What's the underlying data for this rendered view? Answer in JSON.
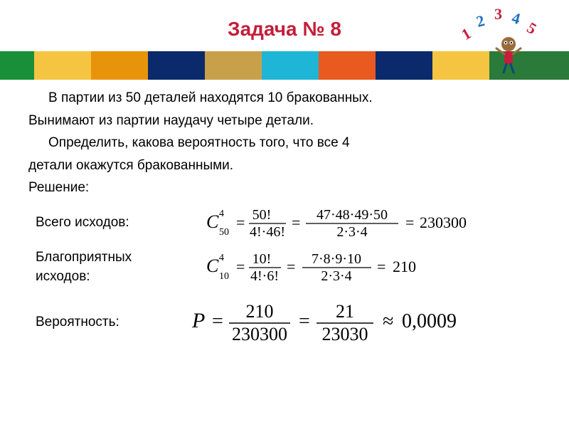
{
  "title": {
    "text": "Задача № 8",
    "color": "#c41e3a",
    "fontsize": 28
  },
  "decoration": {
    "numbers": [
      "1",
      "2",
      "3",
      "4",
      "5"
    ],
    "num_colors": [
      "#c41e3a",
      "#1e6fc4",
      "#c41e3a",
      "#1e6fc4",
      "#c41e3a"
    ]
  },
  "color_bar": {
    "segments": [
      {
        "color": "#1a8f3a",
        "width": 6
      },
      {
        "color": "#f5c542",
        "width": 10
      },
      {
        "color": "#e8940a",
        "width": 10
      },
      {
        "color": "#0a2a6b",
        "width": 10
      },
      {
        "color": "#c9a04a",
        "width": 10
      },
      {
        "color": "#1fb5d6",
        "width": 10
      },
      {
        "color": "#e85a1f",
        "width": 10
      },
      {
        "color": "#0a2a6b",
        "width": 10
      },
      {
        "color": "#f5c542",
        "width": 10
      },
      {
        "color": "#2a7a3a",
        "width": 14
      }
    ]
  },
  "problem": {
    "line1": "В партии из 50 деталей находятся 10 бракованных.",
    "line2": "Вынимают из партии наудачу четыре детали.",
    "line3": "Определить, какова вероятность того, что все 4",
    "line4": "детали окажутся бракованными.",
    "solution_label": "Решение:"
  },
  "math": {
    "total_label": "Всего исходов:",
    "favorable_label": "Благоприятных исходов:",
    "probability_label": "Вероятность:",
    "formula1": {
      "lhs_base": "C",
      "lhs_sub": "50",
      "lhs_sup": "4",
      "frac1_num": "50!",
      "frac1_den": "4!·46!",
      "frac2_num": "47·48·49·50",
      "frac2_den": "2·3·4",
      "result": "230300"
    },
    "formula2": {
      "lhs_base": "C",
      "lhs_sub": "10",
      "lhs_sup": "4",
      "frac1_num": "10!",
      "frac1_den": "4!·6!",
      "frac2_num": "7·8·9·10",
      "frac2_den": "2·3·4",
      "result": "210"
    },
    "formula3": {
      "lhs": "P",
      "frac1_num": "210",
      "frac1_den": "230300",
      "frac2_num": "21",
      "frac2_den": "23030",
      "approx": "0,0009"
    },
    "math_color": "#000000",
    "font_family": "Times New Roman, serif"
  }
}
